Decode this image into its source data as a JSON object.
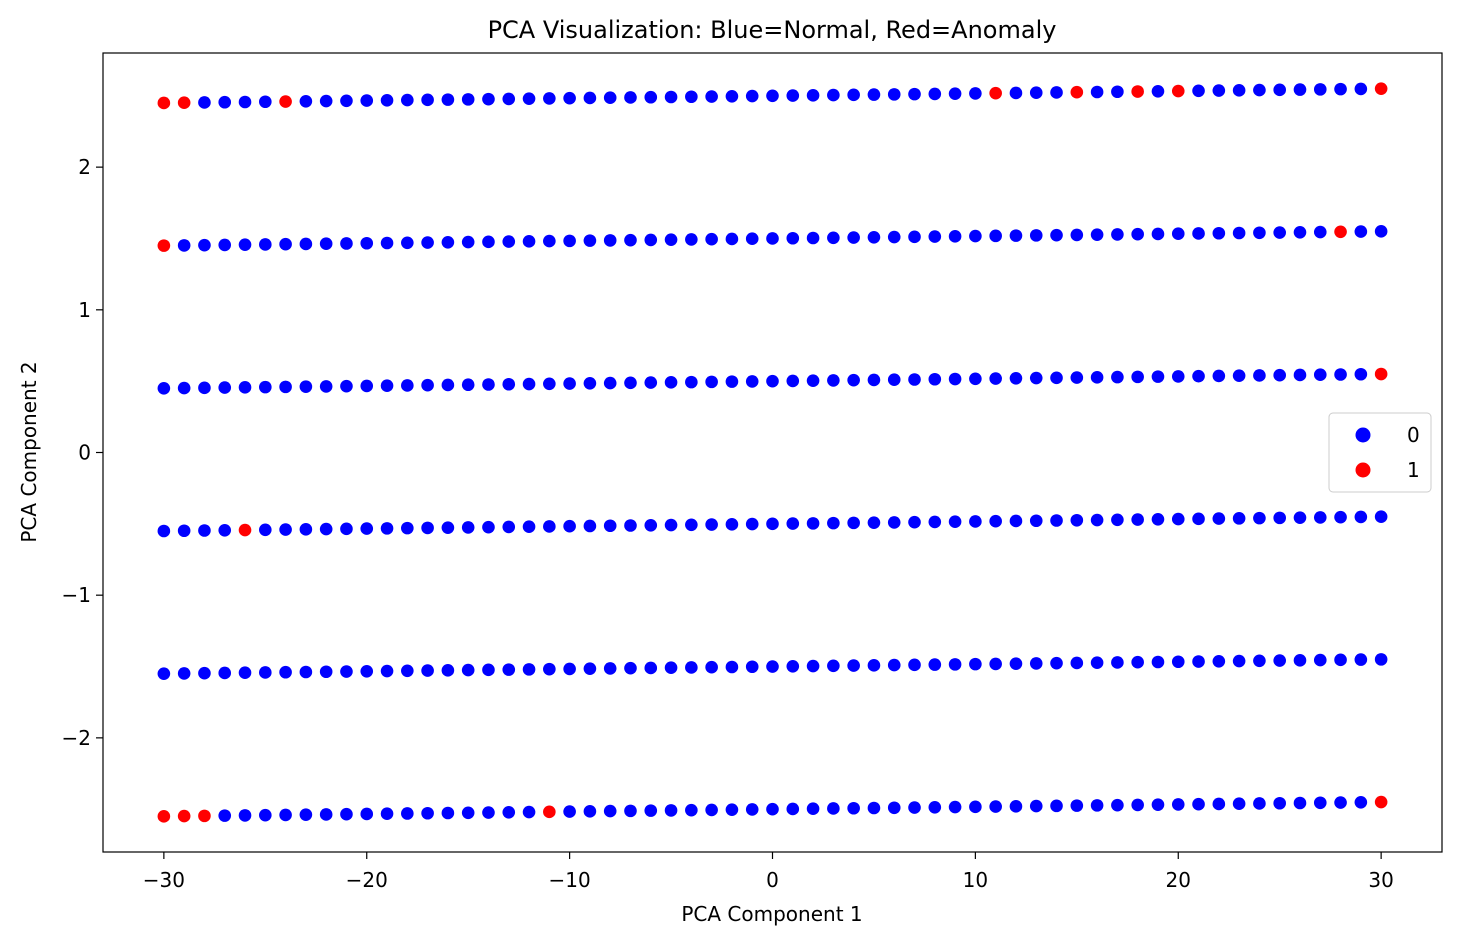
{
  "chart_data": {
    "type": "scatter",
    "title": "PCA Visualization: Blue=Normal, Red=Anomaly",
    "xlabel": "PCA Component 1",
    "ylabel": "PCA Component 2",
    "xlim": [
      -33,
      33
    ],
    "ylim": [
      -2.8,
      2.8
    ],
    "x_ticks": [
      -30,
      -20,
      -10,
      0,
      10,
      20,
      30
    ],
    "x_tick_labels": [
      "−30",
      "−20",
      "−10",
      "0",
      "10",
      "20",
      "30"
    ],
    "y_ticks": [
      -2,
      -1,
      0,
      1,
      2
    ],
    "y_tick_labels": [
      "−2",
      "−1",
      "0",
      "1",
      "2"
    ],
    "grid": false,
    "legend_position": "center-right",
    "x_range_per_row": [
      -30,
      30
    ],
    "row_offsets": [
      2.5,
      1.5,
      0.5,
      -0.5,
      -1.5,
      -2.5
    ],
    "slope": 0.00167,
    "series": [
      {
        "name": "0",
        "color": "#0000ff"
      },
      {
        "name": "1",
        "color": "#ff0000"
      }
    ],
    "anomalies": [
      {
        "row": 2.5,
        "x": [
          -30,
          -29,
          -24,
          11,
          15,
          18,
          20,
          30
        ]
      },
      {
        "row": 1.5,
        "x": [
          -30,
          28
        ]
      },
      {
        "row": 0.5,
        "x": [
          30
        ]
      },
      {
        "row": -0.5,
        "x": [
          -26
        ]
      },
      {
        "row": -1.5,
        "x": []
      },
      {
        "row": -2.5,
        "x": [
          -30,
          -29,
          -28,
          -11,
          30
        ]
      }
    ]
  }
}
